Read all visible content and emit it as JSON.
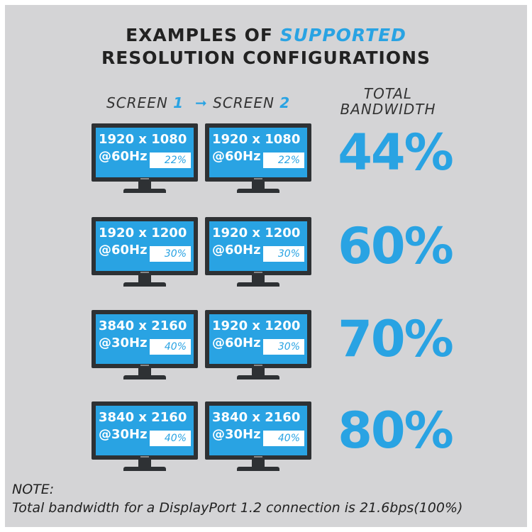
{
  "header": {
    "line1_prefix": "EXAMPLES OF ",
    "line1_highlight": "SUPPORTED",
    "line2": "RESOLUTION CONFIGURATIONS"
  },
  "columns": {
    "screen1_word": "SCREEN",
    "screen1_num": "1",
    "arrow": "➞",
    "screen2_word": "SCREEN",
    "screen2_num": "2",
    "total_line1": "TOTAL",
    "total_line2": "BANDWIDTH"
  },
  "rows": [
    {
      "screen1": {
        "resolution": "1920 x 1080",
        "refresh": "@60Hz",
        "percent": "22%"
      },
      "screen2": {
        "resolution": "1920 x 1080",
        "refresh": "@60Hz",
        "percent": "22%"
      },
      "total": "44%"
    },
    {
      "screen1": {
        "resolution": "1920 x 1200",
        "refresh": "@60Hz",
        "percent": "30%"
      },
      "screen2": {
        "resolution": "1920 x 1200",
        "refresh": "@60Hz",
        "percent": "30%"
      },
      "total": "60%"
    },
    {
      "screen1": {
        "resolution": "3840 x 2160",
        "refresh": "@30Hz",
        "percent": "40%"
      },
      "screen2": {
        "resolution": "1920 x 1200",
        "refresh": "@60Hz",
        "percent": "30%"
      },
      "total": "70%"
    },
    {
      "screen1": {
        "resolution": "3840 x 2160",
        "refresh": "@30Hz",
        "percent": "40%"
      },
      "screen2": {
        "resolution": "3840 x 2160",
        "refresh": "@30Hz",
        "percent": "40%"
      },
      "total": "80%"
    }
  ],
  "note": {
    "label": "NOTE:",
    "text": "Total bandwidth for a DisplayPort 1.2 connection is 21.6bps(100%)"
  },
  "colors": {
    "accent": "#29a3e3",
    "background": "#d4d4d6",
    "monitor": "#2e3134"
  }
}
